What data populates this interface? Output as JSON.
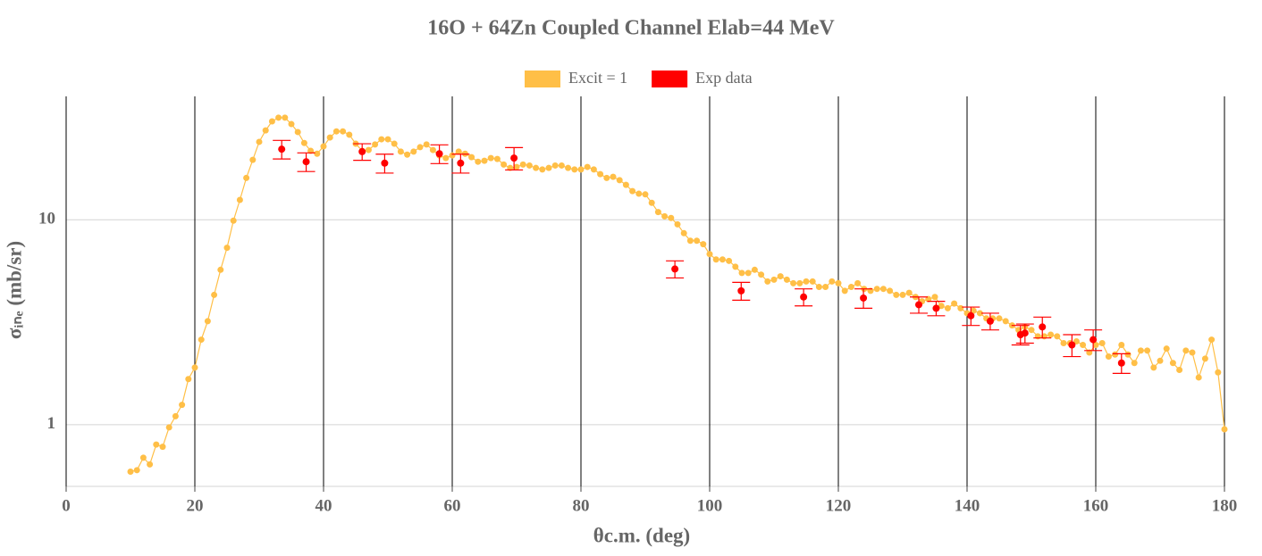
{
  "chart_data": {
    "type": "line",
    "title": "16O + 64Zn Coupled Channel Elab=44 MeV",
    "xlabel": "θc.m. (deg)",
    "ylabel": "σᵢₙₑ (mb/sr)",
    "xlim": [
      0,
      180
    ],
    "ylim": [
      0.5,
      40
    ],
    "log_y": true,
    "xticks": [
      0,
      20,
      40,
      60,
      80,
      100,
      120,
      140,
      160,
      180
    ],
    "yticks": [
      1,
      10
    ],
    "grid": true,
    "legend": "top",
    "series": [
      {
        "name": "Excit = 1",
        "color": "#ffbf47",
        "mode": "lines+markers",
        "x": [
          10,
          11,
          12,
          13,
          14,
          15,
          16,
          17,
          18,
          19,
          20,
          21,
          22,
          23,
          24,
          25,
          26,
          27,
          28,
          29,
          30,
          31,
          32,
          33,
          34,
          35,
          36,
          37,
          38,
          39,
          40,
          41,
          42,
          43,
          44,
          45,
          46,
          47,
          48,
          49,
          50,
          51,
          52,
          53,
          54,
          55,
          56,
          57,
          58,
          59,
          60,
          61,
          62,
          63,
          64,
          65,
          66,
          67,
          68,
          69,
          70,
          71,
          72,
          73,
          74,
          75,
          76,
          77,
          78,
          79,
          80,
          81,
          82,
          83,
          84,
          85,
          86,
          87,
          88,
          89,
          90,
          91,
          92,
          93,
          94,
          95,
          96,
          97,
          98,
          99,
          100,
          101,
          102,
          103,
          104,
          105,
          106,
          107,
          108,
          109,
          110,
          111,
          112,
          113,
          114,
          115,
          116,
          117,
          118,
          119,
          120,
          121,
          122,
          123,
          124,
          125,
          126,
          127,
          128,
          129,
          130,
          131,
          132,
          133,
          134,
          135,
          136,
          137,
          138,
          139,
          140,
          141,
          142,
          143,
          144,
          145,
          146,
          147,
          148,
          149,
          150,
          151,
          152,
          153,
          154,
          155,
          156,
          157,
          158,
          159,
          160,
          161,
          162,
          163,
          164,
          165,
          166,
          167,
          168,
          169,
          170,
          171,
          172,
          173,
          174,
          175,
          176,
          177,
          178,
          179,
          180
        ],
        "values": [
          0.59,
          0.6,
          0.69,
          0.64,
          0.8,
          0.78,
          0.97,
          1.1,
          1.25,
          1.67,
          1.9,
          2.6,
          3.2,
          4.3,
          5.7,
          7.3,
          9.9,
          12.5,
          16,
          19.6,
          24,
          27.3,
          30.2,
          31.5,
          31.5,
          29.3,
          26.8,
          23.7,
          21.7,
          21,
          22.8,
          25.2,
          27,
          27,
          26,
          23.5,
          21.7,
          21.9,
          23.3,
          24.7,
          24.7,
          23.5,
          21.5,
          20.8,
          21.5,
          22.6,
          23.3,
          21.9,
          20.6,
          20,
          20.6,
          21.5,
          21,
          20.2,
          19.2,
          19.4,
          20,
          19.8,
          18.6,
          17.9,
          18.1,
          18.6,
          18.4,
          17.9,
          17.6,
          17.9,
          18.4,
          18.4,
          17.9,
          17.6,
          17.6,
          18.1,
          17.6,
          16.7,
          16,
          16.2,
          15.6,
          14.8,
          13.8,
          13.4,
          13.3,
          12.1,
          10.9,
          10.4,
          10.2,
          9.5,
          8.6,
          7.9,
          7.9,
          7.6,
          6.8,
          6.4,
          6.4,
          6.3,
          5.9,
          5.5,
          5.5,
          5.7,
          5.4,
          5.0,
          5.1,
          5.3,
          5.1,
          4.9,
          4.9,
          5.0,
          5.0,
          4.7,
          4.7,
          5.0,
          4.9,
          4.5,
          4.7,
          4.9,
          4.6,
          4.5,
          4.6,
          4.6,
          4.5,
          4.3,
          4.3,
          4.4,
          4.2,
          4.0,
          4.1,
          4.2,
          3.8,
          3.7,
          3.9,
          3.7,
          3.5,
          3.6,
          3.5,
          3.3,
          3.3,
          3.3,
          3.2,
          3.05,
          2.9,
          3.0,
          2.9,
          2.7,
          2.7,
          2.75,
          2.7,
          2.5,
          2.5,
          2.55,
          2.45,
          2.25,
          2.45,
          2.5,
          2.15,
          2.2,
          2.45,
          2.2,
          2.0,
          2.3,
          2.3,
          1.9,
          2.05,
          2.35,
          2.0,
          1.85,
          2.3,
          2.25,
          1.7,
          2.1,
          2.6,
          1.8,
          0.95
        ]
      },
      {
        "name": "Exp data",
        "color": "#ff0000",
        "mode": "markers",
        "x": [
          33.5,
          37.3,
          46,
          49.5,
          58,
          61.3,
          69.6,
          94.6,
          104.9,
          114.6,
          123.9,
          132.5,
          135.2,
          140.6,
          143.6,
          148.3,
          149,
          151.7,
          156.3,
          159.6,
          164
        ],
        "values": [
          22.1,
          19.2,
          21.5,
          18.9,
          21,
          18.9,
          20,
          5.75,
          4.5,
          4.2,
          4.15,
          3.85,
          3.7,
          3.4,
          3.2,
          2.75,
          2.8,
          3.0,
          2.45,
          2.6,
          2.0
        ],
        "errors": [
          2.3,
          2,
          2,
          2,
          2.2,
          2,
          2.5,
          0.55,
          0.45,
          0.4,
          0.45,
          0.35,
          0.3,
          0.35,
          0.3,
          0.3,
          0.3,
          0.35,
          0.3,
          0.3,
          0.22
        ]
      }
    ]
  }
}
